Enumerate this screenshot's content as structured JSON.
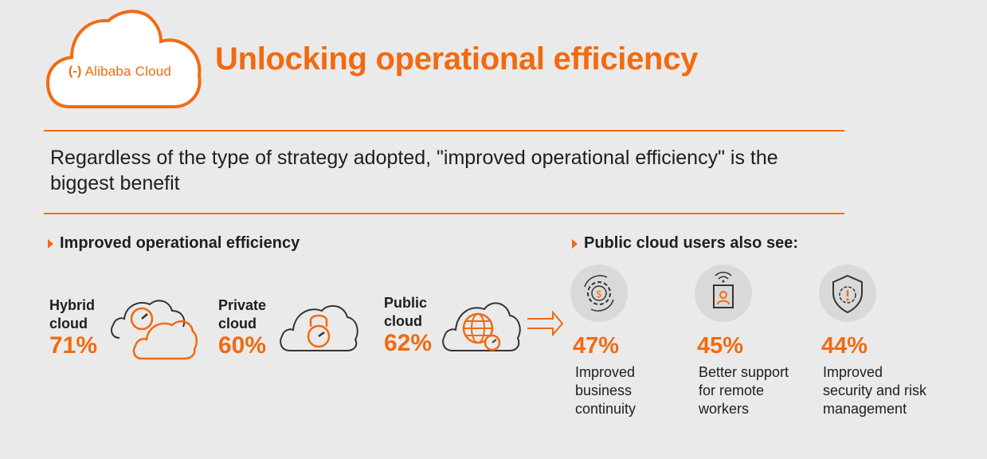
{
  "logo": {
    "mark": "(-)",
    "text": "Alibaba Cloud"
  },
  "title": "Unlocking operational efficiency",
  "subtitle": "Regardless of the type of strategy adopted, \"improved operational efficiency\" is the biggest benefit",
  "left_section": {
    "heading": "Improved operational efficiency",
    "items": [
      {
        "label_line1": "Hybrid",
        "label_line2": "cloud",
        "value": "71%",
        "icon": "hybrid-cloud-gauge-icon"
      },
      {
        "label_line1": "Private",
        "label_line2": "cloud",
        "value": "60%",
        "icon": "private-cloud-lock-icon"
      },
      {
        "label_line1": "Public",
        "label_line2": "cloud",
        "value": "62%",
        "icon": "public-cloud-globe-icon"
      }
    ]
  },
  "right_section": {
    "heading": "Public cloud users also see:",
    "items": [
      {
        "value": "47%",
        "desc_lines": [
          "Improved",
          "business",
          "continuity"
        ],
        "icon": "dollar-gear-icon"
      },
      {
        "value": "45%",
        "desc_lines": [
          "Better support",
          "for remote",
          "workers"
        ],
        "icon": "remote-worker-icon"
      },
      {
        "value": "44%",
        "desc_lines": [
          "Improved",
          "security and risk",
          "management"
        ],
        "icon": "shield-alert-icon"
      }
    ]
  },
  "colors": {
    "accent": "#f26a10",
    "background": "#eaeaea",
    "text": "#1e1e1e"
  }
}
